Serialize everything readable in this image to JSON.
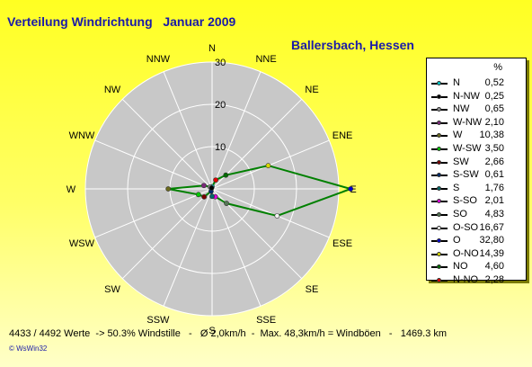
{
  "title": "Verteilung Windrichtung   Januar 2009",
  "location": "Ballersbach, Hessen",
  "footer": "4433 / 4492 Werte  -> 50.3% Windstille   -   Ø 2,0km/h  -  Max. 48,3km/h = Windböen   -   1469.3 km",
  "credit": "© WsWin32",
  "colors": {
    "series": "#008000",
    "rose_fill": "#c8c8c8",
    "grid": "#ffffff",
    "text": "#1a1aa8"
  },
  "chart_data": {
    "type": "radar",
    "unit": "%",
    "directions": [
      "N",
      "NNE",
      "NE",
      "ENE",
      "E",
      "ESE",
      "SE",
      "SSE",
      "S",
      "SSW",
      "SW",
      "WSW",
      "W",
      "WNW",
      "NW",
      "NNW"
    ],
    "radial_ticks": [
      10,
      20,
      30
    ],
    "rmax": 30,
    "values": [
      0.52,
      2.28,
      4.6,
      14.39,
      32.8,
      16.67,
      4.83,
      2.01,
      1.76,
      0.61,
      2.66,
      3.5,
      10.38,
      2.1,
      0.65,
      0.25
    ],
    "legend": {
      "unit": "%",
      "entries": [
        {
          "label": "N",
          "value": "0,52",
          "color": "#00c8c8"
        },
        {
          "label": "N-NW",
          "value": "0,25",
          "color": "#000000"
        },
        {
          "label": "NW",
          "value": "0,65",
          "color": "#909090"
        },
        {
          "label": "W-NW",
          "value": "2,10",
          "color": "#7b2a7b"
        },
        {
          "label": "W",
          "value": "10,38",
          "color": "#6b6b1e"
        },
        {
          "label": "W-SW",
          "value": "3,50",
          "color": "#00c800"
        },
        {
          "label": "SW",
          "value": "2,66",
          "color": "#7a0000"
        },
        {
          "label": "S-SW",
          "value": "0,61",
          "color": "#002a6a"
        },
        {
          "label": "S",
          "value": "1,76",
          "color": "#006a6a"
        },
        {
          "label": "S-SO",
          "value": "2,01",
          "color": "#e000e0"
        },
        {
          "label": "SO",
          "value": "4,83",
          "color": "#557755"
        },
        {
          "label": "O-SO",
          "value": "16,67",
          "color": "#f0f0f0"
        },
        {
          "label": "O",
          "value": "32,80",
          "color": "#0000d0"
        },
        {
          "label": "O-NO",
          "value": "14,39",
          "color": "#d8d800"
        },
        {
          "label": "NO",
          "value": "4,60",
          "color": "#006a00"
        },
        {
          "label": "N-NO",
          "value": "2,28",
          "color": "#e00000"
        }
      ]
    }
  }
}
